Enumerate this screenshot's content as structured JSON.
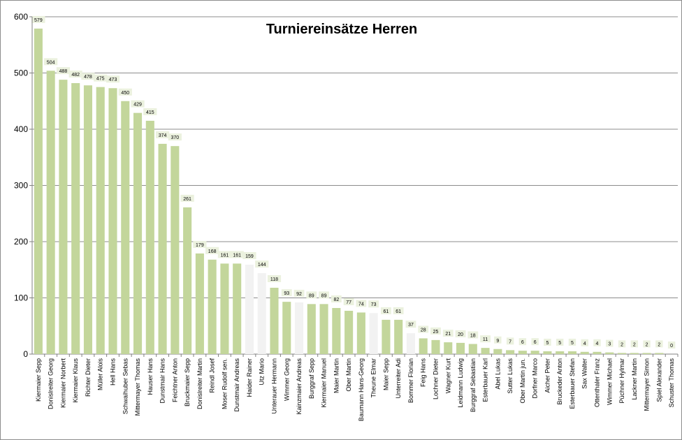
{
  "chart_data": {
    "type": "bar",
    "title": "Turniereinsätze Herren",
    "xlabel": "",
    "ylabel": "",
    "ylim": [
      0,
      600
    ],
    "yticks": [
      0,
      100,
      200,
      300,
      400,
      500,
      600
    ],
    "grid": true,
    "legend": "none",
    "colors": {
      "default": "#c3d69b",
      "highlight": "#f2f2f2",
      "label_bg": "#ebf1de"
    },
    "categories": [
      "Kiermaier Sepp",
      "Donislreiter Georg",
      "Kiermaier Norbert",
      "Kiermaier Klaus",
      "Richter Dieter",
      "Müller Alois",
      "Hell Hans",
      "Schwaihuber Sebas",
      "Mittermayer Thomas",
      "Hauser Hans",
      "Dunstmair Hans",
      "Feichtner Anton",
      "Bruckmaier Sepp",
      "Donislreiter Martin",
      "Reindl Josef",
      "Moser Rudolf sen.",
      "Dunstmair Andreas",
      "Haider Rainer",
      "Utz Mario",
      "Unterauer Hermann",
      "Wimmer Georg",
      "Kainzmaier Andreas",
      "Burggraf Sepp",
      "Kiermaier Manuel",
      "Maier Martin",
      "Ober Martin",
      "Baumann Hans-Georg",
      "Theune Elmar",
      "Maier Sepp",
      "Unterreiter Adi",
      "Bommer Florian",
      "Feig Hans",
      "Lochner Dieter",
      "Wagner Kurt",
      "Leidmann Ludwig",
      "Burggraf Sebastian",
      "Esterbauer Karl",
      "Abel Lukas",
      "Sutter Lukas",
      "Ober Martin jun.",
      "Dorfner Marco",
      "Aicher Peter",
      "Bruckeder Anton",
      "Esterbauer Stefan",
      "Sax Walter",
      "Ottenthaler Franz",
      "Wimmer Michael",
      "Püchner Hylmar",
      "Lackner Martin",
      "Mittermayer Simon",
      "Spiel Alexander",
      "Schuster Thomas"
    ],
    "values": [
      579,
      504,
      488,
      482,
      478,
      475,
      473,
      450,
      429,
      415,
      374,
      370,
      261,
      179,
      168,
      161,
      161,
      159,
      144,
      118,
      93,
      92,
      89,
      89,
      82,
      77,
      74,
      73,
      61,
      61,
      37,
      28,
      25,
      21,
      20,
      18,
      11,
      9,
      7,
      6,
      6,
      5,
      5,
      5,
      4,
      4,
      3,
      2,
      2,
      2,
      2,
      0
    ],
    "highlighted": [
      "Haider Rainer",
      "Utz Mario",
      "Kainzmaier Andreas",
      "Theune Elmar",
      "Bommer Florian"
    ]
  }
}
